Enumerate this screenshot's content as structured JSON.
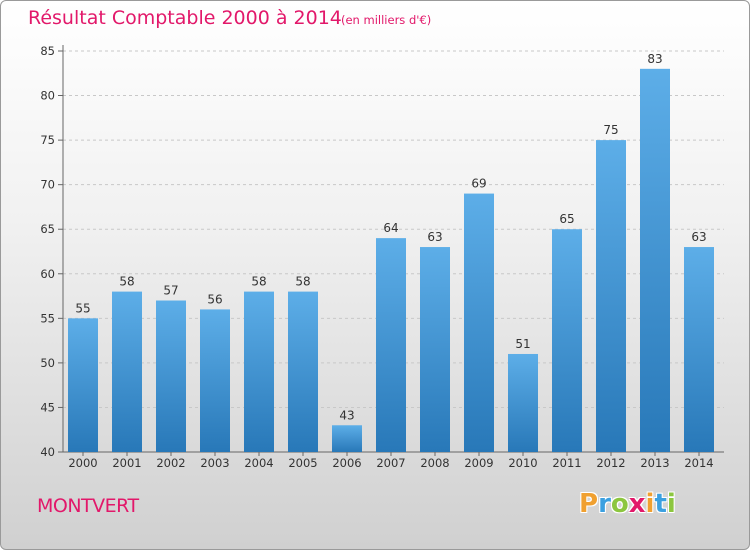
{
  "title": "Résultat Comptable 2000 à 2014",
  "subtitle": "(en milliers d'€)",
  "town": "MONTVERT",
  "logo": {
    "letters": [
      {
        "char": "P",
        "color": "#f0a030"
      },
      {
        "char": "r",
        "color": "#3ba0e0"
      },
      {
        "char": "o",
        "color": "#8cc63f"
      },
      {
        "char": "x",
        "color": "#e2186a"
      },
      {
        "char": "i",
        "color": "#f0a030"
      },
      {
        "char": "t",
        "color": "#3ba0e0"
      },
      {
        "char": "i",
        "color": "#8cc63f"
      }
    ]
  },
  "colors": {
    "title": "#e2186a",
    "bar_top": "#5daee8",
    "bar_bottom": "#2878b8"
  },
  "chart_data": {
    "type": "bar",
    "title": "Résultat Comptable 2000 à 2014",
    "subtitle": "(en milliers d'€)",
    "xlabel": "",
    "ylabel": "",
    "categories": [
      "2000",
      "2001",
      "2002",
      "2003",
      "2004",
      "2005",
      "2006",
      "2007",
      "2008",
      "2009",
      "2010",
      "2011",
      "2012",
      "2013",
      "2014"
    ],
    "values": [
      55,
      58,
      57,
      56,
      58,
      58,
      43,
      64,
      63,
      69,
      51,
      65,
      75,
      83,
      63
    ],
    "ylim": [
      40,
      85
    ],
    "yticks": [
      40,
      45,
      50,
      55,
      60,
      65,
      70,
      75,
      80,
      85
    ],
    "grid": true,
    "data_labels": true
  }
}
